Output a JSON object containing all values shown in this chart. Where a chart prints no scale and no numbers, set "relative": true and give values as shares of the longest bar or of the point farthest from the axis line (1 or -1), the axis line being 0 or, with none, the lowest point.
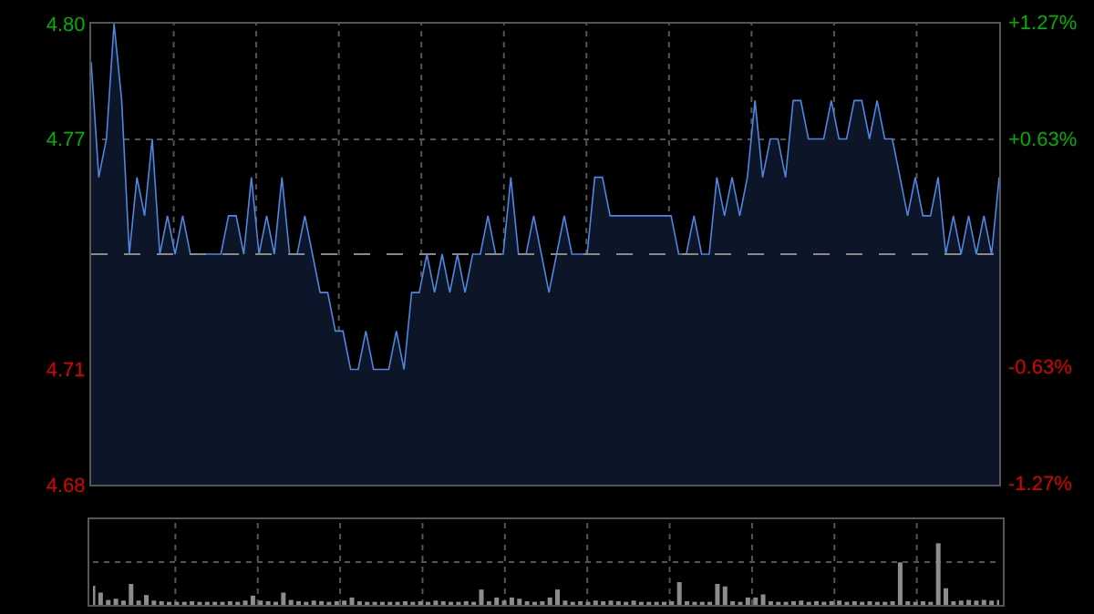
{
  "chart_data": [
    {
      "type": "area",
      "categories": [
        null,
        null,
        null,
        null,
        null,
        null,
        null,
        null,
        null,
        null,
        null,
        null,
        null,
        null,
        null,
        null,
        null,
        null,
        null,
        null,
        null,
        null,
        null,
        null,
        null,
        null,
        null,
        null,
        null,
        null,
        null,
        null,
        null,
        null,
        null,
        null,
        null,
        null,
        null,
        null,
        null,
        null,
        null,
        null,
        null,
        null,
        null,
        null,
        null,
        null,
        null,
        null,
        null,
        null,
        null,
        null,
        null,
        null,
        null,
        null,
        null,
        null,
        null,
        null,
        null,
        null,
        null,
        null,
        null,
        null,
        null,
        null,
        null,
        null,
        null,
        null,
        null,
        null,
        null,
        null,
        null,
        null,
        null,
        null,
        null,
        null,
        null,
        null,
        null,
        null,
        null,
        null,
        null,
        null,
        null,
        null,
        null,
        null,
        null,
        null,
        null,
        null,
        null,
        null,
        null,
        null,
        null,
        null,
        null,
        null,
        null,
        null,
        null,
        null,
        null,
        null,
        null,
        null,
        null,
        null
      ],
      "values": [
        4.79,
        4.76,
        4.77,
        4.8,
        4.78,
        4.74,
        4.76,
        4.75,
        4.77,
        4.74,
        4.75,
        4.74,
        4.75,
        4.74,
        4.74,
        4.74,
        4.74,
        4.74,
        4.75,
        4.75,
        4.74,
        4.76,
        4.74,
        4.75,
        4.74,
        4.76,
        4.74,
        4.74,
        4.75,
        4.74,
        4.73,
        4.73,
        4.72,
        4.72,
        4.71,
        4.71,
        4.72,
        4.71,
        4.71,
        4.71,
        4.72,
        4.71,
        4.73,
        4.73,
        4.74,
        4.73,
        4.74,
        4.73,
        4.74,
        4.73,
        4.74,
        4.74,
        4.75,
        4.74,
        4.74,
        4.76,
        4.74,
        4.74,
        4.75,
        4.74,
        4.73,
        4.74,
        4.75,
        4.74,
        4.74,
        4.74,
        4.76,
        4.76,
        4.75,
        4.75,
        4.75,
        4.75,
        4.75,
        4.75,
        4.75,
        4.75,
        4.75,
        4.74,
        4.74,
        4.75,
        4.74,
        4.74,
        4.76,
        4.75,
        4.76,
        4.75,
        4.76,
        4.78,
        4.76,
        4.77,
        4.77,
        4.76,
        4.78,
        4.78,
        4.77,
        4.77,
        4.77,
        4.78,
        4.77,
        4.77,
        4.78,
        4.78,
        4.77,
        4.78,
        4.77,
        4.77,
        4.76,
        4.75,
        4.76,
        4.75,
        4.75,
        4.76,
        4.74,
        4.75,
        4.74,
        4.75,
        4.74,
        4.75,
        4.74,
        4.76
      ],
      "color": "#4f86e0",
      "ylim": [
        4.68,
        4.8
      ],
      "yticks": [
        {
          "value": 4.8,
          "label": "4.80"
        },
        {
          "value": 4.77,
          "label": "4.77"
        },
        {
          "value": 4.71,
          "label": "4.71"
        },
        {
          "value": 4.68,
          "label": "4.68"
        }
      ],
      "y2lim": [
        -1.27,
        1.27
      ],
      "y2ticks": [
        {
          "value": 1.27,
          "label": "+1.27%"
        },
        {
          "value": 0.63,
          "label": "+0.63%"
        },
        {
          "value": -0.63,
          "label": "-0.63%"
        },
        {
          "value": -1.27,
          "label": "-1.27%"
        }
      ],
      "ref_lines": [
        {
          "axis": "y",
          "value": 4.74,
          "color": "#8a8a8a",
          "line_style": "dashed"
        }
      ],
      "grid": true
    },
    {
      "type": "bar",
      "categories": [
        null,
        null,
        null,
        null,
        null,
        null,
        null,
        null,
        null,
        null,
        null,
        null,
        null,
        null,
        null,
        null,
        null,
        null,
        null,
        null,
        null,
        null,
        null,
        null,
        null,
        null,
        null,
        null,
        null,
        null,
        null,
        null,
        null,
        null,
        null,
        null,
        null,
        null,
        null,
        null,
        null,
        null,
        null,
        null,
        null,
        null,
        null,
        null,
        null,
        null,
        null,
        null,
        null,
        null,
        null,
        null,
        null,
        null,
        null,
        null,
        null,
        null,
        null,
        null,
        null,
        null,
        null,
        null,
        null,
        null,
        null,
        null,
        null,
        null,
        null,
        null,
        null,
        null,
        null,
        null,
        null,
        null,
        null,
        null,
        null,
        null,
        null,
        null,
        null,
        null,
        null,
        null,
        null,
        null,
        null,
        null,
        null,
        null,
        null,
        null,
        null,
        null,
        null,
        null,
        null,
        null,
        null,
        null,
        null,
        null,
        null,
        null,
        null,
        null,
        null,
        null,
        null,
        null,
        null,
        null
      ],
      "values": [
        0.31,
        0.2,
        0.08,
        0.1,
        0.07,
        0.34,
        0.07,
        0.16,
        0.07,
        0.06,
        0.05,
        0.05,
        0.05,
        0.06,
        0.05,
        0.05,
        0.05,
        0.05,
        0.06,
        0.05,
        0.07,
        0.15,
        0.07,
        0.06,
        0.05,
        0.2,
        0.08,
        0.06,
        0.05,
        0.07,
        0.06,
        0.05,
        0.06,
        0.07,
        0.12,
        0.06,
        0.05,
        0.05,
        0.05,
        0.05,
        0.05,
        0.06,
        0.05,
        0.06,
        0.05,
        0.07,
        0.06,
        0.05,
        0.05,
        0.06,
        0.05,
        0.25,
        0.06,
        0.12,
        0.07,
        0.12,
        0.1,
        0.06,
        0.05,
        0.06,
        0.12,
        0.25,
        0.07,
        0.05,
        0.06,
        0.05,
        0.07,
        0.06,
        0.07,
        0.06,
        0.05,
        0.07,
        0.05,
        0.05,
        0.05,
        0.05,
        0.06,
        0.37,
        0.06,
        0.05,
        0.05,
        0.05,
        0.34,
        0.3,
        0.06,
        0.05,
        0.12,
        0.12,
        0.17,
        0.06,
        0.05,
        0.05,
        0.06,
        0.07,
        0.05,
        0.06,
        0.05,
        0.06,
        0.07,
        0.05,
        0.06,
        0.05,
        0.06,
        0.05,
        0.05,
        0.06,
        0.69,
        0.06,
        0.05,
        0.06,
        0.05,
        1,
        0.27,
        0.06,
        0.07,
        0.08,
        0.07,
        0.08,
        0.07,
        0.08
      ],
      "color": "#8c8c8c",
      "relative": true,
      "grid": true
    }
  ]
}
